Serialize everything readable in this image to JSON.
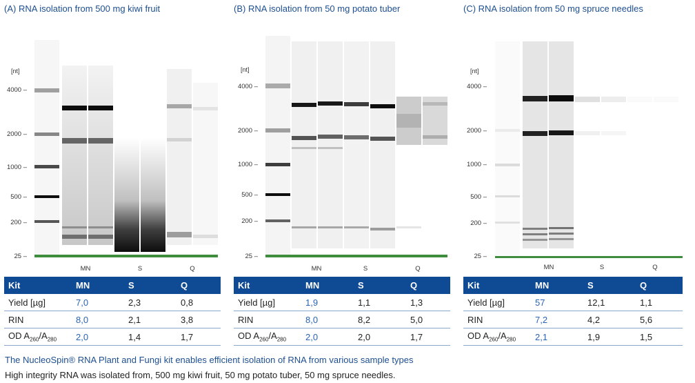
{
  "caption1": "The NucleoSpin® RNA Plant and Fungi kit enables efficient isolation of RNA from various sample types",
  "caption2": "High integrity RNA was isolated from, 500 mg kiwi fruit, 50 mg potato tuber, 50 mg spruce needles.",
  "panels": [
    {
      "title": "(A) RNA isolation from 500 mg kiwi fruit",
      "unit": "[nt]",
      "markers": [
        "4000 –",
        "2000 –",
        "1000 –",
        "500 –",
        "200 –",
        "25 –"
      ],
      "groups": [
        "MN",
        "S",
        "Q"
      ],
      "table": {
        "headers": [
          "Kit",
          "MN",
          "S",
          "Q"
        ],
        "rows": [
          {
            "label": "Yield [µg]",
            "mn": "7,0",
            "s": "2,3",
            "q": "0,8"
          },
          {
            "label": "RIN",
            "mn": "8,0",
            "s": "2,1",
            "q": "3,8"
          },
          {
            "label_od": "OD A",
            "sub1": "260",
            "slash": "/A",
            "sub2": "280",
            "mn": "2,0",
            "s": "1,4",
            "q": "1,7"
          }
        ]
      }
    },
    {
      "title": "(B) RNA isolation from 50 mg potato tuber",
      "unit": "[nt]",
      "markers": [
        "4000 –",
        "2000 –",
        "1000 –",
        "500 –",
        "200 –",
        "25 –"
      ],
      "groups": [
        "MN",
        "S",
        "Q"
      ],
      "table": {
        "headers": [
          "Kit",
          "MN",
          "S",
          "Q"
        ],
        "rows": [
          {
            "label": "Yield [µg]",
            "mn": "1,9",
            "s": "1,1",
            "q": "1,3"
          },
          {
            "label": "RIN",
            "mn": "8,0",
            "s": "8,2",
            "q": "5,0"
          },
          {
            "label_od": "OD A",
            "sub1": "260",
            "slash": "/A",
            "sub2": "280",
            "mn": "2,0",
            "s": "2,0",
            "q": "1,7"
          }
        ]
      }
    },
    {
      "title": "(C) RNA isolation from 50 mg spruce needles",
      "unit": "[nt]",
      "markers": [
        "4000 –",
        "2000 –",
        "1000 –",
        "500 –",
        "200 –",
        "25 –"
      ],
      "groups": [
        "MN",
        "S",
        "Q"
      ],
      "table": {
        "headers": [
          "Kit",
          "MN",
          "S",
          "Q"
        ],
        "rows": [
          {
            "label": "Yield [µg]",
            "mn": "57",
            "s": "12,1",
            "q": "1,1"
          },
          {
            "label": "RIN",
            "mn": "7,2",
            "s": "4,2",
            "q": "5,6"
          },
          {
            "label_od": "OD A",
            "sub1": "260",
            "slash": "/A",
            "sub2": "280",
            "mn": "2,1",
            "s": "1,9",
            "q": "1,5"
          }
        ]
      }
    }
  ]
}
